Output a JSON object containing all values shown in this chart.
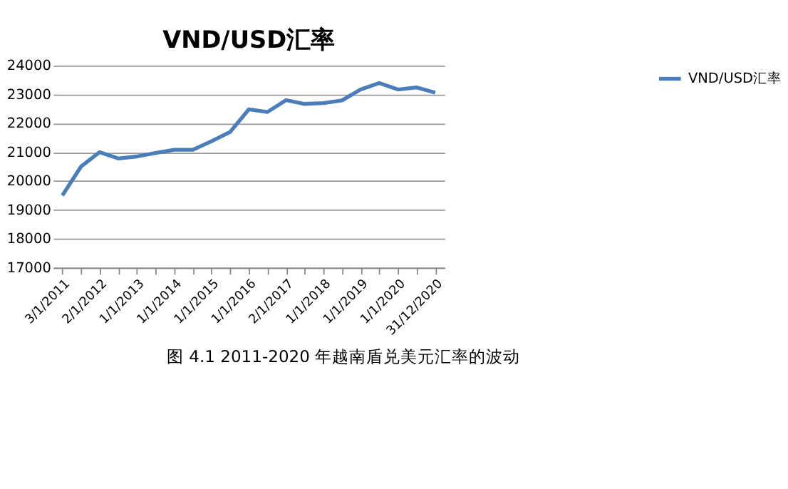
{
  "chart_data": {
    "type": "line",
    "title": "VND/USD汇率",
    "categories": [
      "3/1/2011",
      null,
      "2/1/2012",
      null,
      "1/1/2013",
      null,
      "1/1/2014",
      null,
      "1/1/2015",
      null,
      "1/1/2016",
      null,
      "2/1/2017",
      null,
      "1/1/2018",
      null,
      "1/1/2019",
      null,
      "1/1/2020",
      null,
      "31/12/2020"
    ],
    "series": [
      {
        "name": "VND/USD汇率",
        "color": "#4a7ebb",
        "values": [
          19500,
          20500,
          21000,
          20780,
          20850,
          20970,
          21080,
          21080,
          21380,
          21700,
          22480,
          22390,
          22800,
          22670,
          22700,
          22790,
          23170,
          23390,
          23170,
          23240,
          23060
        ]
      }
    ],
    "ylim": [
      17000,
      24000
    ],
    "yticks": [
      17000,
      18000,
      19000,
      20000,
      21000,
      22000,
      23000,
      24000
    ],
    "grid": "y",
    "legend": "right",
    "marker": "none",
    "line_style": "solid",
    "annotations": [
      "图 4.1   2011-2020 年越南盾兑美元汇率的波动"
    ]
  }
}
